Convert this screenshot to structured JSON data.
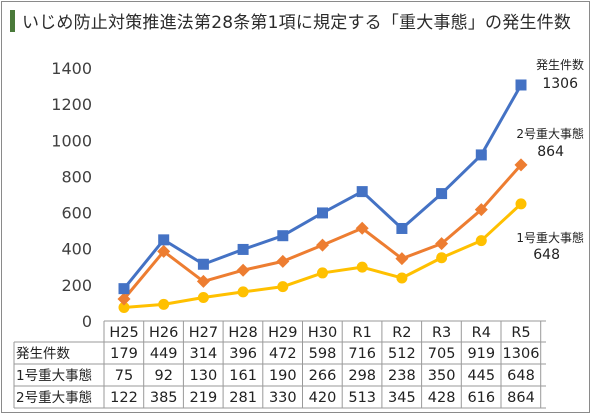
{
  "title": "いじめ防止対策推進法第28条第1項に規定する「重大事態」の発生件数",
  "colors": {
    "accent": "#4a7a3a",
    "series": [
      "#4472C4",
      "#ED7D31",
      "#FFC000"
    ]
  },
  "chart_data": {
    "type": "line",
    "categories": [
      "H25",
      "H26",
      "H27",
      "H28",
      "H29",
      "H30",
      "R1",
      "R2",
      "R3",
      "R4",
      "R5"
    ],
    "series": [
      {
        "name": "発生件数",
        "values": [
          179,
          449,
          314,
          396,
          472,
          598,
          716,
          512,
          705,
          919,
          1306
        ],
        "marker": "square"
      },
      {
        "name": "2号重大事態",
        "values": [
          122,
          385,
          219,
          281,
          330,
          420,
          513,
          345,
          428,
          616,
          864
        ],
        "marker": "diamond"
      },
      {
        "name": "1号重大事態",
        "values": [
          75,
          92,
          130,
          161,
          190,
          266,
          298,
          238,
          350,
          445,
          648
        ],
        "marker": "circle"
      }
    ],
    "ylim": [
      0,
      1400
    ],
    "yticks": [
      "0",
      "200",
      "400",
      "600",
      "800",
      "1000",
      "1200",
      "1400"
    ],
    "grid": false,
    "annotations": [
      {
        "label": "発生件数",
        "value": "1306"
      },
      {
        "label": "2号重大事態",
        "value": "864"
      },
      {
        "label": "1号重大事態",
        "value": "648"
      }
    ],
    "table": {
      "rows": [
        {
          "label": "発生件数",
          "values": [
            "179",
            "449",
            "314",
            "396",
            "472",
            "598",
            "716",
            "512",
            "705",
            "919",
            "1306"
          ]
        },
        {
          "label": "1号重大事態",
          "values": [
            "75",
            "92",
            "130",
            "161",
            "190",
            "266",
            "298",
            "238",
            "350",
            "445",
            "648"
          ]
        },
        {
          "label": "2号重大事態",
          "values": [
            "122",
            "385",
            "219",
            "281",
            "330",
            "420",
            "513",
            "345",
            "428",
            "616",
            "864"
          ]
        }
      ]
    }
  }
}
